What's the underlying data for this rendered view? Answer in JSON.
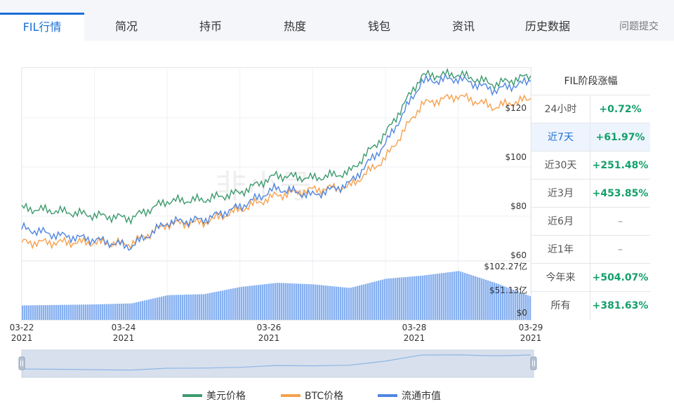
{
  "tabs": [
    {
      "label": "FIL行情",
      "active": true
    },
    {
      "label": "简况"
    },
    {
      "label": "持币"
    },
    {
      "label": "热度"
    },
    {
      "label": "钱包"
    },
    {
      "label": "资讯"
    },
    {
      "label": "历史数据"
    },
    {
      "label": "问题提交"
    }
  ],
  "watermark": "非小号",
  "side_table": {
    "title": "FIL阶段涨幅",
    "rows": [
      {
        "label": "24小时",
        "value": "+0.72%"
      },
      {
        "label": "近7天",
        "value": "+61.97%",
        "active": true
      },
      {
        "label": "近30天",
        "value": "+251.48%"
      },
      {
        "label": "近3月",
        "value": "+453.85%"
      },
      {
        "label": "近6月",
        "value": "–"
      },
      {
        "label": "近1年",
        "value": "–"
      },
      {
        "label": "今年来",
        "value": "+504.07%"
      },
      {
        "label": "所有",
        "value": "+381.63%"
      }
    ]
  },
  "colors": {
    "usd": "#3d9a6e",
    "btc": "#f6a04d",
    "cap": "#4f86e0",
    "volume": "#86b0f0",
    "accent": "#1a6fd6",
    "up": "#13a06a"
  },
  "legend": [
    {
      "label": "美元价格",
      "color": "#3d9a6e"
    },
    {
      "label": "BTC价格",
      "color": "#f6a04d"
    },
    {
      "label": "流通市值",
      "color": "#4f86e0"
    }
  ],
  "chart_data": {
    "type": "line",
    "x_axis": {
      "ticks": [
        {
          "date": "03-22",
          "year": "2021"
        },
        {
          "date": "03-24",
          "year": "2021"
        },
        {
          "date": "03-26",
          "year": "2021"
        },
        {
          "date": "03-28",
          "year": "2021"
        },
        {
          "date": "03-29",
          "year": "2021"
        }
      ],
      "range": [
        "2021-03-22",
        "2021-03-29"
      ]
    },
    "price_axis": {
      "ticks": [
        "$120",
        "$100",
        "$80",
        "$60"
      ],
      "range": [
        60,
        125
      ]
    },
    "volume_axis": {
      "ticks": [
        "$102.27亿",
        "$51.13亿",
        "$0"
      ],
      "range": [
        0,
        102.27
      ]
    },
    "series": [
      {
        "name": "美元价格",
        "x": [
          "03-22",
          "03-22 12:00",
          "03-23",
          "03-23 12:00",
          "03-24",
          "03-24 12:00",
          "03-25",
          "03-25 12:00",
          "03-26",
          "03-26 12:00",
          "03-27",
          "03-27 12:00",
          "03-28",
          "03-28 12:00",
          "03-29"
        ],
        "values": [
          78.5,
          77.5,
          76,
          75,
          81,
          81.5,
          84,
          90,
          89,
          91,
          104.5,
          125,
          125.5,
          122,
          125
        ]
      },
      {
        "name": "BTC价格",
        "x": [
          "03-22",
          "03-22 12:00",
          "03-23",
          "03-23 12:00",
          "03-24",
          "03-24 12:00",
          "03-25",
          "03-25 12:00",
          "03-26",
          "03-26 12:00",
          "03-27",
          "03-27 12:00",
          "03-28",
          "03-28 12:00",
          "03-29"
        ],
        "values": [
          66.5,
          66.5,
          66.5,
          66,
          73,
          73.5,
          78,
          83,
          85,
          86,
          96,
          115,
          118,
          114,
          117
        ]
      },
      {
        "name": "流通市值",
        "x": [
          "03-22",
          "03-22 12:00",
          "03-23",
          "03-23 12:00",
          "03-24",
          "03-24 12:00",
          "03-25",
          "03-25 12:00",
          "03-26",
          "03-26 12:00",
          "03-27",
          "03-27 12:00",
          "03-28",
          "03-28 12:00",
          "03-29"
        ],
        "values": [
          71.5,
          69,
          67.5,
          65,
          73.5,
          74.5,
          79,
          85.5,
          83,
          87,
          101,
          123,
          124,
          120,
          123
        ]
      }
    ],
    "volume": {
      "name": "成交额",
      "x": [
        "03-22",
        "03-23",
        "03-23 12:00",
        "03-24",
        "03-24 12:00",
        "03-25",
        "03-25 12:00",
        "03-26",
        "03-26 12:00",
        "03-27",
        "03-27 12:00",
        "03-28",
        "03-28 12:00",
        "03-29"
      ],
      "values": [
        28,
        30,
        32,
        48,
        50,
        64,
        72,
        69,
        62,
        80,
        86,
        95,
        72,
        45
      ]
    }
  }
}
